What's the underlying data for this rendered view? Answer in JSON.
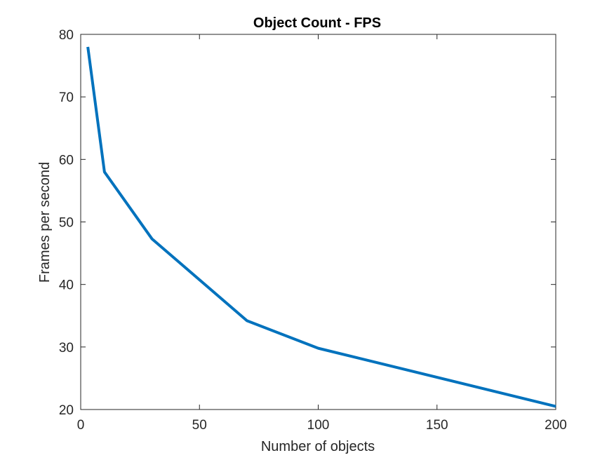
{
  "chart_data": {
    "type": "line",
    "title": "Object Count - FPS",
    "xlabel": "Number of objects",
    "ylabel": "Frames per second",
    "xlim": [
      0,
      200
    ],
    "ylim": [
      20,
      80
    ],
    "xticks": [
      0,
      50,
      100,
      150,
      200
    ],
    "yticks": [
      20,
      30,
      40,
      50,
      60,
      70,
      80
    ],
    "grid": false,
    "legend": "none",
    "series": [
      {
        "x": [
          3,
          10,
          30,
          70,
          100,
          200
        ],
        "y": [
          78,
          58,
          47.3,
          34.2,
          29.8,
          20.5
        ],
        "color": "#0072BD"
      }
    ]
  }
}
